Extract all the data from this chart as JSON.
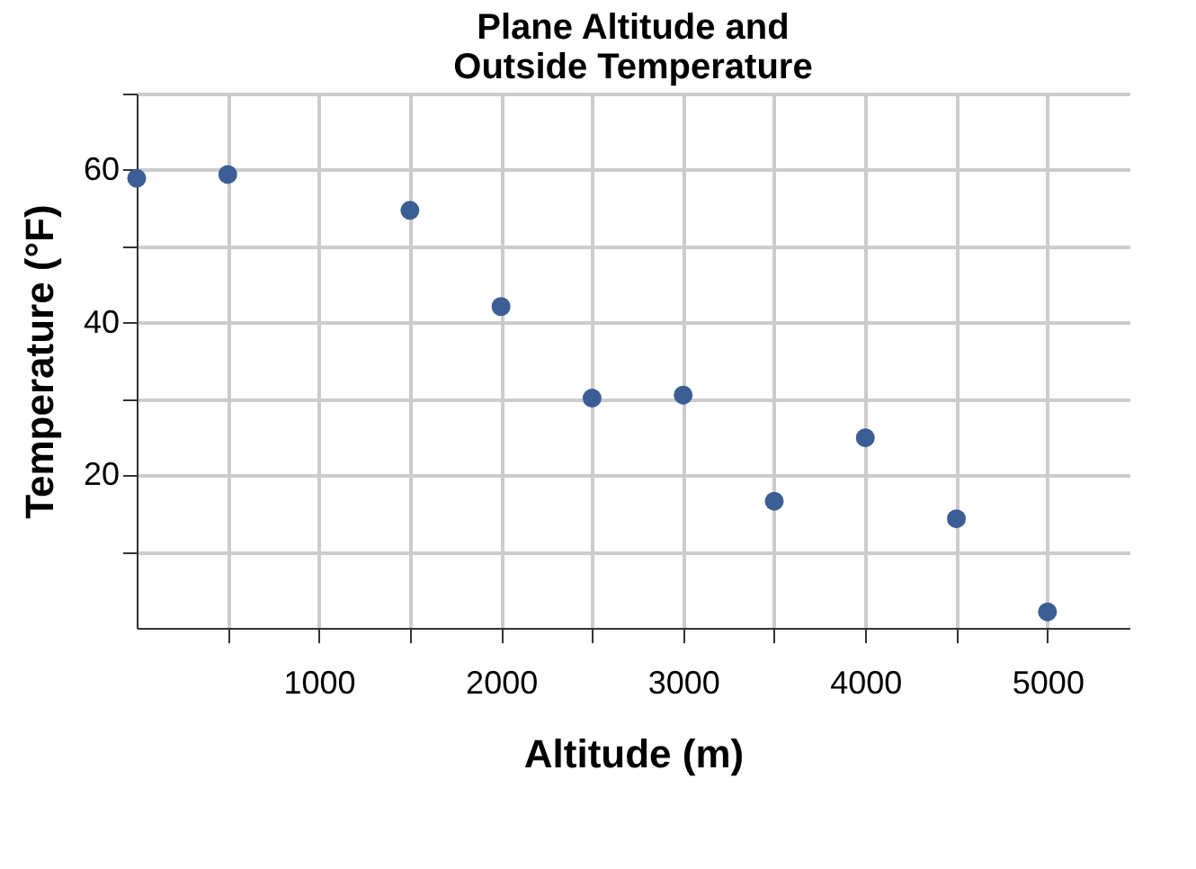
{
  "chart_data": {
    "type": "scatter",
    "title": [
      "Plane Altitude and",
      "Outside Temperature"
    ],
    "xlabel": "Altitude (m)",
    "ylabel": "Temperature (°F)",
    "x": [
      0,
      500,
      1500,
      2000,
      2500,
      3000,
      3500,
      4000,
      4500,
      5000
    ],
    "series": [
      {
        "color": "#3b5e95",
        "values": [
          58.9,
          59.4,
          54.7,
          42.1,
          30.1,
          30.5,
          16.6,
          24.9,
          14.3,
          2.1
        ]
      }
    ],
    "xlim": [
      0,
      5450
    ],
    "ylim": [
      0,
      70
    ],
    "xticks": [
      {
        "value": 500,
        "label": null
      },
      1000,
      {
        "value": 1500,
        "label": null
      },
      2000,
      {
        "value": 2500,
        "label": null
      },
      3000,
      {
        "value": 3500,
        "label": null
      },
      4000,
      {
        "value": 4500,
        "label": null
      },
      5000
    ],
    "yticks": [
      {
        "value": 10,
        "label": null
      },
      20,
      {
        "value": 30,
        "label": null
      },
      40,
      {
        "value": 50,
        "label": null
      },
      60,
      {
        "value": 70,
        "label": null
      }
    ],
    "grid": true,
    "marker": "circle"
  }
}
